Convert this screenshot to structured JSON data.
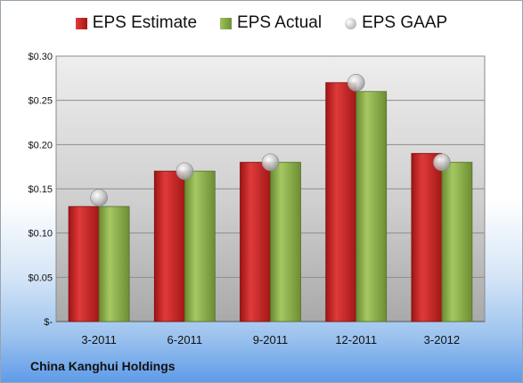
{
  "chart_data": {
    "type": "bar",
    "categories": [
      "3-2011",
      "6-2011",
      "9-2011",
      "12-2011",
      "3-2012"
    ],
    "series": [
      {
        "name": "EPS Estimate",
        "kind": "bar",
        "color": "#c42222",
        "values": [
          0.13,
          0.17,
          0.18,
          0.27,
          0.19
        ]
      },
      {
        "name": "EPS Actual",
        "kind": "bar",
        "color": "#86a844",
        "values": [
          0.13,
          0.17,
          0.18,
          0.26,
          0.18
        ]
      },
      {
        "name": "EPS GAAP",
        "kind": "marker",
        "color": "#b5b5b5",
        "values": [
          0.14,
          0.17,
          0.18,
          0.27,
          0.18
        ]
      }
    ],
    "ylim": [
      0,
      0.3
    ],
    "yticks": [
      0,
      0.05,
      0.1,
      0.15,
      0.2,
      0.25,
      0.3
    ],
    "ytick_labels": [
      "$-",
      "$0.05",
      "$0.10",
      "$0.15",
      "$0.20",
      "$0.25",
      "$0.30"
    ],
    "legend_position": "top",
    "grid": true
  },
  "footer": {
    "company": "China Kanghui Holdings"
  }
}
